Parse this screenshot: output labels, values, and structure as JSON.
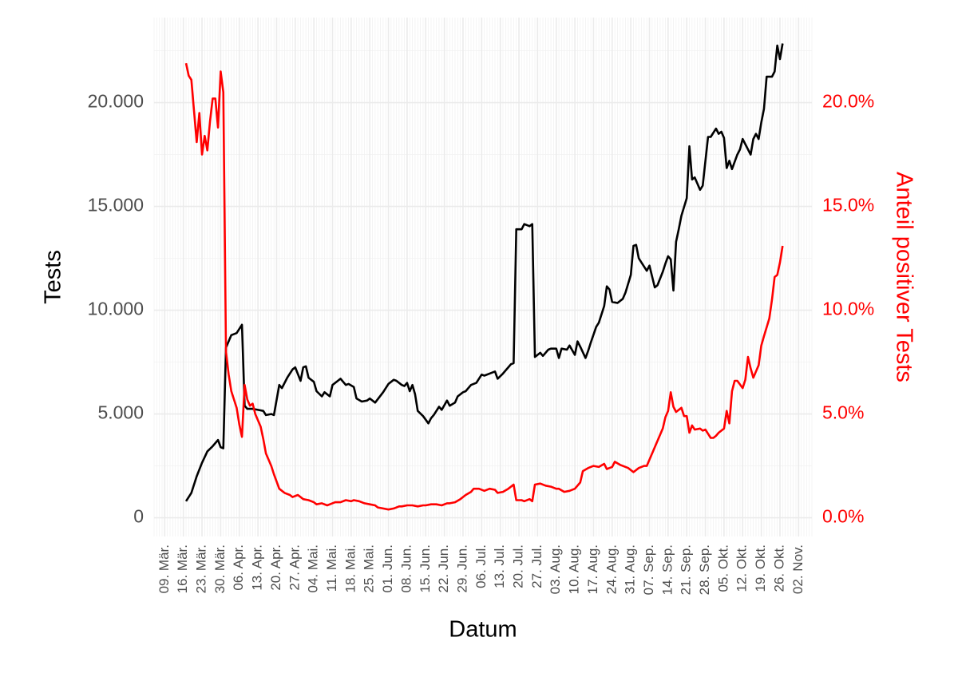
{
  "chart_data": {
    "type": "line",
    "xlabel": "Datum",
    "ylabel": "Tests",
    "y2label": "Anteil positiver Tests",
    "xlim": [
      "05.03.",
      "07.11."
    ],
    "xticks": [
      {
        "value": "09.03.",
        "label": "09. Mär."
      },
      {
        "value": "16.03.",
        "label": "16. Mär."
      },
      {
        "value": "23.03.",
        "label": "23. Mär."
      },
      {
        "value": "30.03.",
        "label": "30. Mär."
      },
      {
        "value": "06.04.",
        "label": "06. Apr."
      },
      {
        "value": "13.04.",
        "label": "13. Apr."
      },
      {
        "value": "20.04.",
        "label": "20. Apr."
      },
      {
        "value": "27.04.",
        "label": "27. Apr."
      },
      {
        "value": "04.05.",
        "label": "04. Mai."
      },
      {
        "value": "11.05.",
        "label": "11. Mai."
      },
      {
        "value": "18.05.",
        "label": "18. Mai."
      },
      {
        "value": "25.05.",
        "label": "25. Mai."
      },
      {
        "value": "01.06.",
        "label": "01. Jun."
      },
      {
        "value": "08.06.",
        "label": "08. Jun."
      },
      {
        "value": "15.06.",
        "label": "15. Jun."
      },
      {
        "value": "22.06.",
        "label": "22. Jun."
      },
      {
        "value": "29.06.",
        "label": "29. Jun."
      },
      {
        "value": "06.07.",
        "label": "06. Jul."
      },
      {
        "value": "13.07.",
        "label": "13. Jul."
      },
      {
        "value": "20.07.",
        "label": "20. Jul."
      },
      {
        "value": "27.07.",
        "label": "27. Jul."
      },
      {
        "value": "03.08.",
        "label": "03. Aug."
      },
      {
        "value": "10.08.",
        "label": "10. Aug."
      },
      {
        "value": "17.08.",
        "label": "17. Aug."
      },
      {
        "value": "24.08.",
        "label": "24. Aug."
      },
      {
        "value": "31.08.",
        "label": "31. Aug."
      },
      {
        "value": "07.09.",
        "label": "07. Sep."
      },
      {
        "value": "14.09.",
        "label": "14. Sep."
      },
      {
        "value": "21.09.",
        "label": "21. Sep."
      },
      {
        "value": "28.09.",
        "label": "28. Sep."
      },
      {
        "value": "05.10.",
        "label": "05. Okt."
      },
      {
        "value": "12.10.",
        "label": "12. Okt."
      },
      {
        "value": "19.10.",
        "label": "19. Okt."
      },
      {
        "value": "26.10.",
        "label": "26. Okt."
      },
      {
        "value": "02.11.",
        "label": "02. Nov."
      }
    ],
    "ylim": [
      -900,
      24100
    ],
    "yticks": [
      0,
      {
        "value": 5000,
        "label": "5.000"
      },
      {
        "value": 10000,
        "label": "10.000"
      },
      {
        "value": 15000,
        "label": "15.000"
      },
      {
        "value": 20000,
        "label": "20.000"
      }
    ],
    "y2lim": [
      -0.9,
      24.1
    ],
    "y2ticks": [
      {
        "value": 0,
        "label": "0.0%"
      },
      {
        "value": 5,
        "label": "5.0%"
      },
      {
        "value": 10,
        "label": "10.0%"
      },
      {
        "value": 15,
        "label": "15.0%"
      },
      {
        "value": 20,
        "label": "20.0%"
      }
    ],
    "grid": true,
    "series": [
      {
        "color": "#000000",
        "x": [
          "17.03.",
          "19.03.",
          "21.03.",
          "23.03.",
          "25.03.",
          "27.03.",
          "29.03.",
          "30.03.",
          "31.03.",
          "01.04.",
          "03.04.",
          "05.04.",
          "07.04.",
          "08.04.",
          "09.04.",
          "11.04.",
          "13.04.",
          "15.04.",
          "16.04.",
          "18.04.",
          "19.04.",
          "21.04.",
          "22.04.",
          "24.04.",
          "26.04.",
          "27.04.",
          "29.04.",
          "30.04.",
          "01.05.",
          "02.05.",
          "04.05.",
          "05.05.",
          "07.05.",
          "08.05.",
          "10.05.",
          "11.05.",
          "13.05.",
          "14.05.",
          "16.05.",
          "17.05.",
          "19.05.",
          "20.05.",
          "22.05.",
          "24.05.",
          "25.05.",
          "27.05.",
          "30.05.",
          "01.06.",
          "03.06.",
          "04.06.",
          "06.06.",
          "07.06.",
          "08.06.",
          "09.06.",
          "10.06.",
          "11.06.",
          "12.06.",
          "14.06.",
          "16.06.",
          "17.06.",
          "18.06.",
          "20.06.",
          "21.06.",
          "23.06.",
          "24.06.",
          "26.06.",
          "27.06.",
          "29.06.",
          "30.06.",
          "02.07.",
          "04.07.",
          "06.07.",
          "07.07.",
          "09.07.",
          "11.07.",
          "12.07.",
          "14.07.",
          "16.07.",
          "17.07.",
          "18.07.",
          "19.07.",
          "21.07.",
          "22.07.",
          "24.07.",
          "25.07.",
          "26.07.",
          "28.07.",
          "29.07.",
          "31.07.",
          "01.08.",
          "03.08.",
          "04.08.",
          "05.08.",
          "07.08.",
          "08.08.",
          "10.08.",
          "11.08.",
          "12.08.",
          "14.08.",
          "15.08.",
          "16.08.",
          "18.08.",
          "19.08.",
          "21.08.",
          "22.08.",
          "23.08.",
          "24.08.",
          "26.08.",
          "28.08.",
          "29.08.",
          "31.08.",
          "01.09.",
          "02.09.",
          "03.09.",
          "04.09.",
          "06.09.",
          "07.09.",
          "09.09.",
          "10.09.",
          "12.09.",
          "13.09.",
          "14.09.",
          "15.09.",
          "16.09.",
          "17.09.",
          "18.09.",
          "19.09.",
          "21.09.",
          "22.09.",
          "23.09.",
          "24.09.",
          "26.09.",
          "27.09.",
          "29.09.",
          "30.09.",
          "02.10.",
          "03.10.",
          "04.10.",
          "05.10.",
          "06.10.",
          "07.10.",
          "08.10.",
          "10.10.",
          "11.10.",
          "12.10.",
          "13.10.",
          "15.10.",
          "16.10.",
          "17.10.",
          "18.10.",
          "19.10.",
          "20.10.",
          "21.10.",
          "23.10.",
          "24.10.",
          "25.10.",
          "26.10.",
          "27.10."
        ],
        "values": [
          800,
          1200,
          2000,
          2650,
          3200,
          3450,
          3750,
          3400,
          3350,
          8200,
          8800,
          8900,
          9300,
          5400,
          5250,
          5250,
          5200,
          5150,
          4950,
          5000,
          4950,
          6400,
          6250,
          6750,
          7150,
          7250,
          6600,
          7250,
          7300,
          6750,
          6550,
          6100,
          5850,
          6050,
          5850,
          6400,
          6600,
          6700,
          6400,
          6450,
          6300,
          5750,
          5600,
          5650,
          5750,
          5550,
          6050,
          6450,
          6650,
          6600,
          6400,
          6350,
          6500,
          6100,
          6400,
          5950,
          5150,
          4900,
          4550,
          4800,
          4950,
          5350,
          5200,
          5650,
          5400,
          5550,
          5850,
          6050,
          6100,
          6400,
          6500,
          6900,
          6850,
          6950,
          7050,
          6700,
          6950,
          7250,
          7400,
          7450,
          13900,
          13900,
          14150,
          14050,
          14150,
          7750,
          7950,
          7800,
          8100,
          8150,
          8150,
          7700,
          8150,
          8100,
          8300,
          7850,
          8500,
          8250,
          7700,
          8050,
          8450,
          9200,
          9400,
          10200,
          11150,
          11000,
          10400,
          10350,
          10550,
          10850,
          11700,
          13100,
          13150,
          12500,
          12300,
          11900,
          12150,
          11100,
          11200,
          11850,
          12250,
          12600,
          12450,
          10950,
          13300,
          13900,
          14550,
          15400,
          17900,
          16300,
          16400,
          15800,
          16000,
          18350,
          18350,
          18750,
          18500,
          18600,
          18300,
          16850,
          17200,
          16800,
          17500,
          17750,
          18250,
          18000,
          17500,
          18250,
          18500,
          18250,
          19050,
          19700,
          21250,
          21250,
          21500,
          22750,
          22100,
          22850
        ]
      },
      {
        "color": "#ff0000",
        "axis": "y2",
        "x": [
          "17.03.",
          "18.03.",
          "19.03.",
          "20.03.",
          "21.03.",
          "22.03.",
          "23.03.",
          "24.03.",
          "25.03.",
          "26.03.",
          "27.03.",
          "28.03.",
          "29.03.",
          "30.03.",
          "31.03.",
          "01.04.",
          "02.04.",
          "03.04.",
          "05.04.",
          "06.04.",
          "07.04.",
          "08.04.",
          "09.04.",
          "10.04.",
          "11.04.",
          "12.04.",
          "14.04.",
          "15.04.",
          "16.04.",
          "18.04.",
          "19.04.",
          "21.04.",
          "23.04.",
          "25.04.",
          "26.04.",
          "28.04.",
          "30.04.",
          "02.05.",
          "04.05.",
          "05.05.",
          "07.05.",
          "09.05.",
          "10.05.",
          "12.05.",
          "14.05.",
          "16.05.",
          "18.05.",
          "19.05.",
          "21.05.",
          "23.05.",
          "25.05.",
          "27.05.",
          "28.05.",
          "30.05.",
          "01.06.",
          "03.06.",
          "05.06.",
          "06.06.",
          "08.06.",
          "10.06.",
          "12.06.",
          "14.06.",
          "15.06.",
          "17.06.",
          "19.06.",
          "21.06.",
          "23.06.",
          "24.06.",
          "26.06.",
          "28.06.",
          "30.06.",
          "02.07.",
          "03.07.",
          "05.07.",
          "07.07.",
          "09.07.",
          "11.07.",
          "12.07.",
          "14.07.",
          "16.07.",
          "18.07.",
          "19.07.",
          "21.07.",
          "22.07.",
          "24.07.",
          "25.07.",
          "26.07.",
          "28.07.",
          "30.07.",
          "01.08.",
          "03.08.",
          "04.08.",
          "06.08.",
          "08.08.",
          "10.08.",
          "12.08.",
          "13.08.",
          "15.08.",
          "17.08.",
          "19.08.",
          "21.08.",
          "22.08.",
          "24.08.",
          "25.08.",
          "27.08.",
          "28.08.",
          "30.08.",
          "01.09.",
          "03.09.",
          "05.09.",
          "06.09.",
          "08.09.",
          "10.09.",
          "12.09.",
          "13.09.",
          "14.09.",
          "15.09.",
          "16.09.",
          "17.09.",
          "19.09.",
          "20.09.",
          "21.09.",
          "22.09.",
          "23.09.",
          "24.09.",
          "26.09.",
          "27.09.",
          "28.09.",
          "30.09.",
          "01.10.",
          "02.10.",
          "03.10.",
          "05.10.",
          "06.10.",
          "07.10.",
          "08.10.",
          "09.10.",
          "10.10.",
          "12.10.",
          "13.10.",
          "14.10.",
          "15.10.",
          "16.10.",
          "18.10.",
          "19.10.",
          "20.10.",
          "22.10.",
          "23.10.",
          "24.10.",
          "25.10.",
          "26.10.",
          "27.10."
        ],
        "values": [
          21.9,
          21.3,
          21.1,
          19.6,
          18.1,
          19.5,
          17.5,
          18.4,
          17.7,
          19.1,
          20.2,
          20.2,
          18.8,
          21.5,
          20.5,
          8.0,
          6.9,
          6.1,
          5.3,
          4.5,
          3.9,
          6.4,
          5.7,
          5.4,
          5.5,
          5.0,
          4.4,
          3.8,
          3.1,
          2.5,
          2.1,
          1.4,
          1.2,
          1.1,
          1.0,
          1.1,
          0.9,
          0.85,
          0.75,
          0.65,
          0.7,
          0.6,
          0.65,
          0.75,
          0.75,
          0.85,
          0.8,
          0.85,
          0.8,
          0.7,
          0.65,
          0.6,
          0.5,
          0.45,
          0.4,
          0.45,
          0.55,
          0.55,
          0.6,
          0.6,
          0.55,
          0.6,
          0.6,
          0.65,
          0.65,
          0.6,
          0.7,
          0.7,
          0.75,
          0.9,
          1.1,
          1.25,
          1.4,
          1.4,
          1.3,
          1.4,
          1.35,
          1.2,
          1.25,
          1.4,
          1.6,
          0.85,
          0.85,
          0.8,
          0.9,
          0.8,
          1.6,
          1.65,
          1.55,
          1.5,
          1.4,
          1.4,
          1.25,
          1.3,
          1.4,
          1.7,
          2.25,
          2.4,
          2.5,
          2.45,
          2.6,
          2.35,
          2.45,
          2.7,
          2.55,
          2.5,
          2.4,
          2.2,
          2.4,
          2.5,
          2.5,
          3.1,
          3.7,
          4.3,
          4.85,
          5.15,
          6.05,
          5.35,
          5.1,
          5.3,
          4.9,
          4.9,
          4.1,
          4.45,
          4.25,
          4.3,
          4.2,
          4.25,
          3.85,
          3.85,
          3.95,
          4.1,
          4.3,
          5.15,
          4.55,
          6.1,
          6.6,
          6.6,
          6.25,
          6.65,
          7.75,
          7.2,
          6.75,
          7.35,
          8.3,
          8.75,
          9.6,
          10.5,
          11.6,
          11.7,
          12.3,
          13.1
        ]
      }
    ]
  }
}
